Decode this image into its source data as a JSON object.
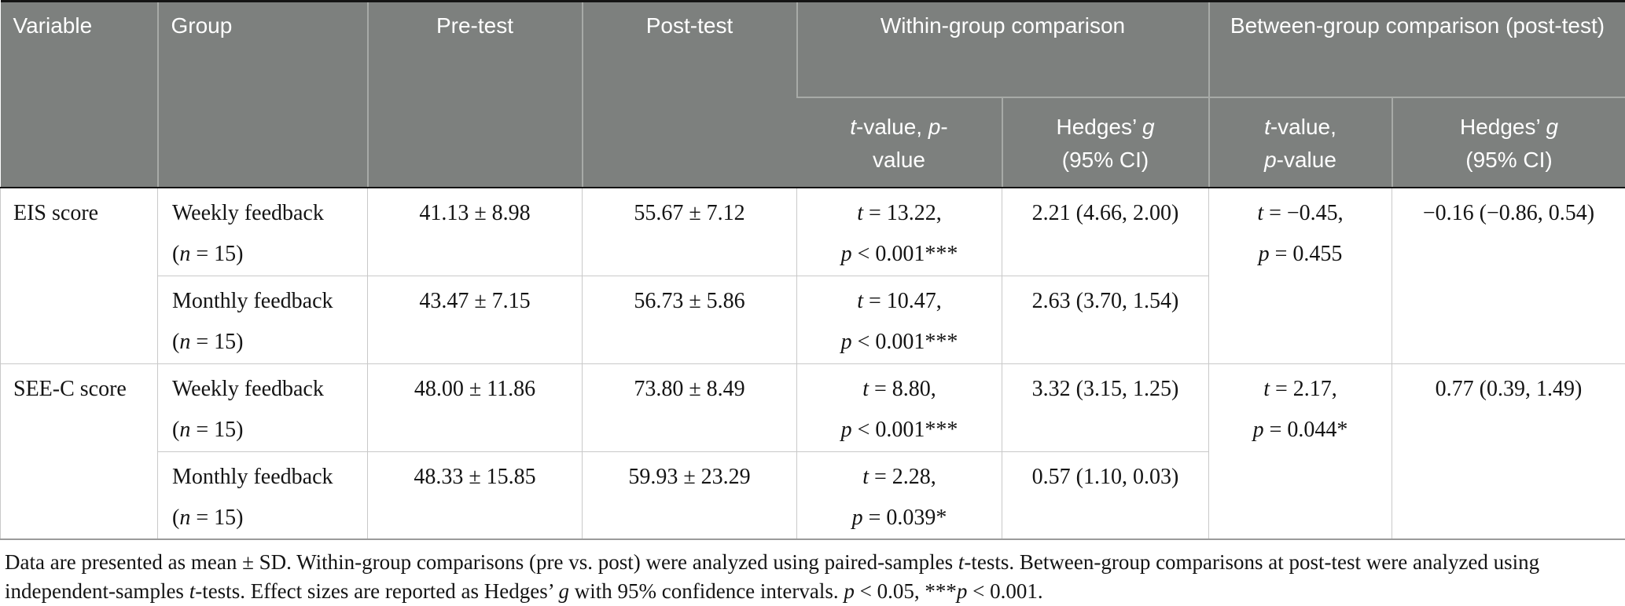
{
  "colors": {
    "header_bg": "#7d807e",
    "header_text": "#ffffff",
    "header_divider": "#a7aaa7",
    "grid_line": "#c9c9c9",
    "header_rule": "#141414",
    "bottom_rule": "#9b9b9b",
    "body_text": "#141414"
  },
  "header": {
    "variable": "Variable",
    "group": "Group",
    "pretest": "Pre-test",
    "posttest": "Post-test",
    "within_group": "Within-group comparison",
    "between_group": "Between-group comparison (post-test)",
    "within_tp_l1": [
      {
        "t": "t",
        "i": true
      },
      {
        "t": "-value, "
      },
      {
        "t": "p",
        "i": true
      },
      {
        "t": "-"
      }
    ],
    "within_tp_l2": [
      {
        "t": "value"
      }
    ],
    "within_g_l1": [
      {
        "t": "Hedges’ "
      },
      {
        "t": "g",
        "i": true
      }
    ],
    "within_g_l2": [
      {
        "t": "(95% CI)"
      }
    ],
    "between_tp_l1": [
      {
        "t": "t",
        "i": true
      },
      {
        "t": "-value,"
      }
    ],
    "between_tp_l2": [
      {
        "t": "p",
        "i": true
      },
      {
        "t": "-value"
      }
    ],
    "between_g_l1": [
      {
        "t": "Hedges’ "
      },
      {
        "t": "g",
        "i": true
      }
    ],
    "between_g_l2": [
      {
        "t": "(95% CI)"
      }
    ]
  },
  "rows": [
    {
      "variable": "EIS score",
      "between_t": [
        {
          "t": "t",
          "i": true
        },
        {
          "t": " = −0.45,"
        }
      ],
      "between_p": [
        {
          "t": "p",
          "i": true
        },
        {
          "t": " = 0.455"
        }
      ],
      "between_g": "−0.16 (−0.86, 0.54)",
      "groups": [
        {
          "name": "Weekly feedback",
          "n": [
            {
              "t": "("
            },
            {
              "t": "n",
              "i": true
            },
            {
              "t": " = 15)"
            }
          ],
          "pretest": "41.13 ± 8.98",
          "posttest": "55.67 ± 7.12",
          "t": [
            {
              "t": "t",
              "i": true
            },
            {
              "t": " = 13.22,"
            }
          ],
          "p": [
            {
              "t": "p",
              "i": true
            },
            {
              "t": " < 0.001***"
            }
          ],
          "g": "2.21 (4.66, 2.00)"
        },
        {
          "name": "Monthly feedback",
          "n": [
            {
              "t": "("
            },
            {
              "t": "n",
              "i": true
            },
            {
              "t": " = 15)"
            }
          ],
          "pretest": "43.47 ± 7.15",
          "posttest": "56.73 ± 5.86",
          "t": [
            {
              "t": "t",
              "i": true
            },
            {
              "t": " = 10.47,"
            }
          ],
          "p": [
            {
              "t": "p",
              "i": true
            },
            {
              "t": " < 0.001***"
            }
          ],
          "g": "2.63 (3.70, 1.54)"
        }
      ]
    },
    {
      "variable": "SEE-C score",
      "between_t": [
        {
          "t": "t",
          "i": true
        },
        {
          "t": " = 2.17,"
        }
      ],
      "between_p": [
        {
          "t": "p",
          "i": true
        },
        {
          "t": " = 0.044*"
        }
      ],
      "between_g": "0.77 (0.39, 1.49)",
      "groups": [
        {
          "name": "Weekly feedback",
          "n": [
            {
              "t": "("
            },
            {
              "t": "n",
              "i": true
            },
            {
              "t": " = 15)"
            }
          ],
          "pretest": "48.00 ± 11.86",
          "posttest": "73.80 ± 8.49",
          "t": [
            {
              "t": "t",
              "i": true
            },
            {
              "t": " = 8.80,"
            }
          ],
          "p": [
            {
              "t": "p",
              "i": true
            },
            {
              "t": " < 0.001***"
            }
          ],
          "g": "3.32 (3.15, 1.25)"
        },
        {
          "name": "Monthly feedback",
          "n": [
            {
              "t": "("
            },
            {
              "t": "n",
              "i": true
            },
            {
              "t": " = 15)"
            }
          ],
          "pretest": "48.33 ± 15.85",
          "posttest": "59.93 ± 23.29",
          "t": [
            {
              "t": "t",
              "i": true
            },
            {
              "t": " = 2.28,"
            }
          ],
          "p": [
            {
              "t": "p",
              "i": true
            },
            {
              "t": " = 0.039*"
            }
          ],
          "g": "0.57 (1.10, 0.03)"
        }
      ]
    }
  ],
  "footnote": [
    {
      "t": "Data are presented as mean ± SD. Within-group comparisons (pre vs. post) were analyzed using paired-samples "
    },
    {
      "t": "t",
      "i": true
    },
    {
      "t": "-tests. Between-group comparisons at post-test were analyzed using independent-samples "
    },
    {
      "t": "t",
      "i": true
    },
    {
      "t": "-tests. Effect sizes are reported as Hedges’ "
    },
    {
      "t": "g",
      "i": true
    },
    {
      "t": " with 95% confidence intervals. "
    },
    {
      "t": "p",
      "i": true
    },
    {
      "t": " < 0.05, ***"
    },
    {
      "t": "p",
      "i": true
    },
    {
      "t": " < 0.001."
    }
  ]
}
